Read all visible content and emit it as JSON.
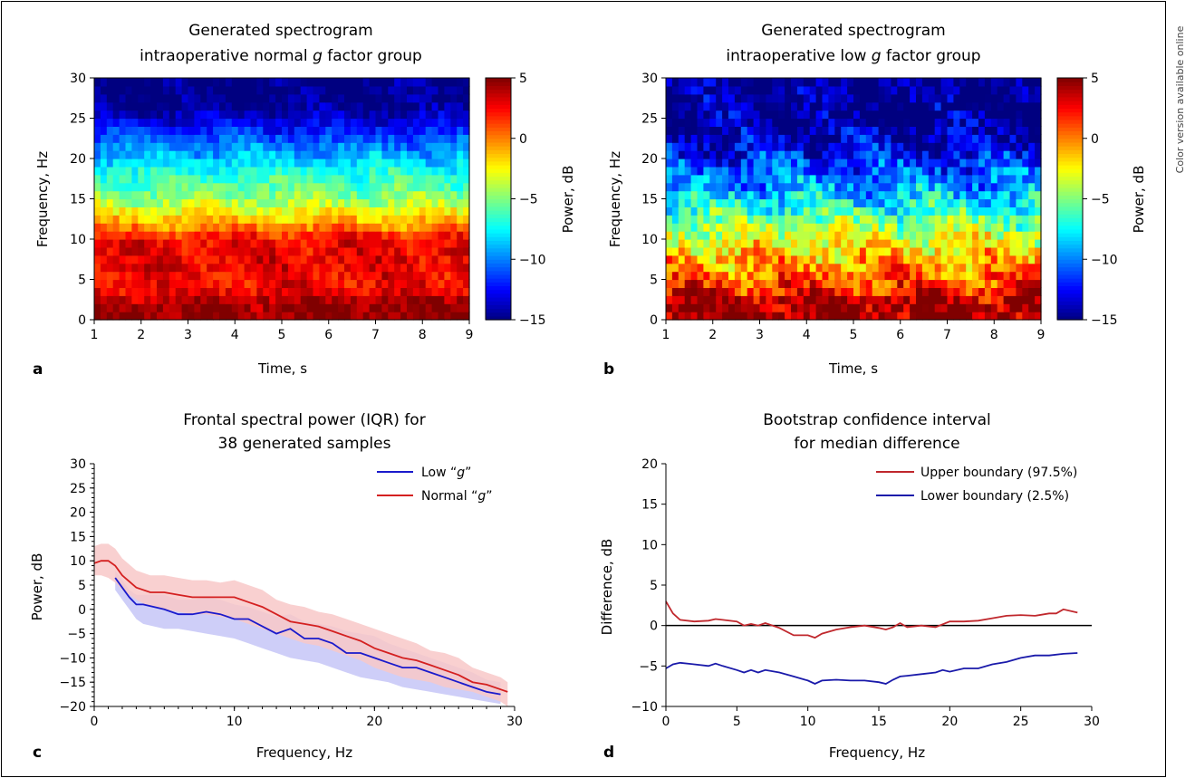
{
  "side_note": "Color version available online",
  "chart_data": [
    {
      "panel": "a",
      "type": "heatmap",
      "title_line1": "Generated spectrogram",
      "title_line2_pre": "intraoperative normal ",
      "title_italic": "g",
      "title_line2_post": " factor group",
      "xlabel": "Time, s",
      "ylabel": "Frequency, Hz",
      "colorbar_label": "Power, dB",
      "xlim": [
        1,
        9
      ],
      "ylim": [
        0,
        30
      ],
      "clim": [
        -15,
        5
      ],
      "colormap": "jet",
      "xticks": [
        1,
        2,
        3,
        4,
        5,
        6,
        7,
        8,
        9
      ],
      "yticks": [
        0,
        5,
        10,
        15,
        20,
        25,
        30
      ],
      "cticks": [
        -15,
        -10,
        -5,
        0,
        5
      ],
      "power_profile_dB": [
        {
          "freq": 0,
          "power": 5
        },
        {
          "freq": 2,
          "power": 4.5
        },
        {
          "freq": 4,
          "power": 2.5
        },
        {
          "freq": 6,
          "power": 2.8
        },
        {
          "freq": 8,
          "power": 3
        },
        {
          "freq": 10,
          "power": 2.5
        },
        {
          "freq": 11.5,
          "power": 0
        },
        {
          "freq": 13,
          "power": -2
        },
        {
          "freq": 15,
          "power": -4.5
        },
        {
          "freq": 17,
          "power": -6
        },
        {
          "freq": 19,
          "power": -7.5
        },
        {
          "freq": 21,
          "power": -9.5
        },
        {
          "freq": 23,
          "power": -11.5
        },
        {
          "freq": 25,
          "power": -13.5
        },
        {
          "freq": 27,
          "power": -15
        },
        {
          "freq": 30,
          "power": -15
        }
      ]
    },
    {
      "panel": "b",
      "type": "heatmap",
      "title_line1": "Generated spectrogram",
      "title_line2_pre": "intraoperative low ",
      "title_italic": "g",
      "title_line2_post": " factor group",
      "xlabel": "Time, s",
      "ylabel": "Frequency, Hz",
      "colorbar_label": "Power, dB",
      "xlim": [
        1,
        9
      ],
      "ylim": [
        0,
        30
      ],
      "clim": [
        -15,
        5
      ],
      "colormap": "jet",
      "xticks": [
        1,
        2,
        3,
        4,
        5,
        6,
        7,
        8,
        9
      ],
      "yticks": [
        0,
        5,
        10,
        15,
        20,
        25,
        30
      ],
      "cticks": [
        -15,
        -10,
        -5,
        0,
        5
      ],
      "power_profile_dB": [
        {
          "freq": 0,
          "power": 5
        },
        {
          "freq": 2,
          "power": 4.5
        },
        {
          "freq": 4,
          "power": 1.5
        },
        {
          "freq": 6,
          "power": 0
        },
        {
          "freq": 8,
          "power": -1
        },
        {
          "freq": 10,
          "power": -3
        },
        {
          "freq": 12,
          "power": -5
        },
        {
          "freq": 14,
          "power": -7
        },
        {
          "freq": 16,
          "power": -9
        },
        {
          "freq": 18,
          "power": -10.5
        },
        {
          "freq": 20,
          "power": -12
        },
        {
          "freq": 22,
          "power": -13.5
        },
        {
          "freq": 24,
          "power": -14.5
        },
        {
          "freq": 26,
          "power": -15
        },
        {
          "freq": 30,
          "power": -15
        }
      ]
    },
    {
      "panel": "c",
      "type": "line",
      "title_line1": "Frontal spectral power (IQR) for",
      "title_line2": "38 generated samples",
      "xlabel": "Frequency, Hz",
      "ylabel": "Power, dB",
      "xlim": [
        0,
        30
      ],
      "ylim": [
        -20,
        30
      ],
      "xticks": [
        0,
        10,
        20,
        30
      ],
      "yticks": [
        -20,
        -15,
        -10,
        -5,
        0,
        5,
        10,
        15,
        20,
        25,
        30
      ],
      "legend_position": "top-right",
      "series": [
        {
          "name_pre": "Low “",
          "name_italic": "g",
          "name_post": "”",
          "color": "#1a1acc",
          "band_color": "#c6c6f7",
          "x": [
            1.5,
            2,
            2.5,
            3,
            3.5,
            5,
            6,
            7,
            8,
            9,
            10,
            11,
            12,
            13,
            14,
            15,
            16,
            17,
            18,
            19,
            20,
            21,
            22,
            23,
            24,
            25,
            26,
            27,
            28,
            29
          ],
          "median": [
            6.5,
            4.5,
            2.5,
            1,
            1,
            0,
            -1,
            -1,
            -0.5,
            -1,
            -2,
            -2,
            -3.5,
            -5,
            -4,
            -6,
            -6,
            -7,
            -9,
            -9,
            -10,
            -11,
            -12,
            -12,
            -13,
            -14,
            -15,
            -16,
            -17,
            -17.5
          ],
          "q1": [
            4,
            2,
            0,
            -2,
            -3,
            -4,
            -4,
            -4.5,
            -5,
            -5.5,
            -6,
            -7,
            -8,
            -9,
            -10,
            -10.5,
            -11,
            -12,
            -13,
            -14,
            -14.5,
            -15,
            -16,
            -16.5,
            -17,
            -17.5,
            -18,
            -18.5,
            -19,
            -19.5
          ],
          "q3": [
            8,
            6,
            4,
            3,
            3,
            3,
            2,
            2,
            2.5,
            2,
            1,
            0.5,
            -0.5,
            -1.5,
            -1,
            -2.5,
            -3,
            -3.5,
            -4.5,
            -5,
            -5.5,
            -7,
            -8,
            -9,
            -10,
            -11,
            -12,
            -13,
            -14.5,
            -15
          ]
        },
        {
          "name_pre": "Normal “",
          "name_italic": "g",
          "name_post": "”",
          "color": "#d42020",
          "band_color": "#f8c8c8",
          "x": [
            0,
            0.5,
            1,
            1.5,
            2,
            3,
            4,
            5,
            6,
            7,
            8,
            9,
            10,
            11,
            12,
            13,
            14,
            15,
            16,
            17,
            18,
            19,
            20,
            21,
            22,
            23,
            24,
            25,
            26,
            27,
            28,
            29,
            29.5
          ],
          "median": [
            9.5,
            10,
            10,
            9,
            7,
            4.5,
            3.5,
            3.5,
            3,
            2.5,
            2.5,
            2.5,
            2.5,
            1.5,
            0.5,
            -1,
            -2.5,
            -3,
            -3.5,
            -4.5,
            -5.5,
            -6.5,
            -8,
            -9,
            -10,
            -10.5,
            -11.5,
            -12.5,
            -13.5,
            -15,
            -15.5,
            -16.5,
            -17
          ],
          "q1": [
            7,
            7,
            6.5,
            5.5,
            4,
            2,
            0.5,
            0,
            -0.5,
            -1,
            -1,
            -1.5,
            -2,
            -3,
            -4,
            -5,
            -6,
            -7,
            -7.5,
            -8.5,
            -9.5,
            -10.5,
            -12,
            -13,
            -14,
            -14.5,
            -15,
            -16,
            -16.5,
            -17,
            -18,
            -19,
            -20
          ],
          "q3": [
            13,
            13.5,
            13.5,
            12.5,
            10.5,
            8,
            7,
            7,
            6.5,
            6,
            6,
            5.5,
            6,
            5,
            4,
            2,
            1,
            0.5,
            -0.5,
            -1,
            -2,
            -3,
            -4,
            -5,
            -6,
            -7,
            -8.5,
            -9,
            -10,
            -12,
            -13,
            -14,
            -15
          ]
        }
      ]
    },
    {
      "panel": "d",
      "type": "line",
      "title_line1": "Bootstrap confidence interval",
      "title_line2": "for median difference",
      "xlabel": "Frequency, Hz",
      "ylabel": "Difference, dB",
      "xlim": [
        0,
        30
      ],
      "ylim": [
        -10,
        20
      ],
      "xticks": [
        0,
        5,
        10,
        15,
        20,
        25,
        30
      ],
      "yticks": [
        -10,
        -5,
        0,
        5,
        10,
        15,
        20
      ],
      "reference_line": 0,
      "legend_position": "top-right",
      "series": [
        {
          "name": "Upper boundary (97.5%)",
          "color": "#c0282d",
          "x": [
            0,
            0.5,
            1,
            2,
            3,
            3.5,
            4,
            5,
            5.5,
            6,
            6.5,
            7,
            8,
            9,
            10,
            10.5,
            11,
            12,
            13,
            14,
            15,
            15.5,
            16,
            16.5,
            17,
            18,
            19,
            20,
            21,
            22,
            23,
            24,
            25,
            26,
            27,
            27.5,
            28,
            29
          ],
          "values": [
            3,
            1.5,
            0.7,
            0.5,
            0.6,
            0.8,
            0.7,
            0.5,
            0,
            0.2,
            0,
            0.3,
            -0.3,
            -1.2,
            -1.2,
            -1.5,
            -1,
            -0.5,
            -0.2,
            0,
            -0.3,
            -0.5,
            -0.2,
            0.3,
            -0.2,
            0,
            -0.2,
            0.5,
            0.5,
            0.6,
            0.9,
            1.2,
            1.3,
            1.2,
            1.5,
            1.5,
            2,
            1.6
          ]
        },
        {
          "name": "Lower boundary (2.5%)",
          "color": "#1a1aaa",
          "x": [
            0,
            0.5,
            1,
            2,
            3,
            3.5,
            4,
            5,
            5.5,
            6,
            6.5,
            7,
            8,
            9,
            10,
            10.5,
            11,
            12,
            13,
            14,
            15,
            15.5,
            16,
            16.5,
            17,
            18,
            19,
            19.5,
            20,
            21,
            22,
            23,
            24,
            25,
            26,
            27,
            28,
            29
          ],
          "values": [
            -5.3,
            -4.8,
            -4.6,
            -4.8,
            -5,
            -4.7,
            -5,
            -5.5,
            -5.8,
            -5.5,
            -5.8,
            -5.5,
            -5.8,
            -6.3,
            -6.8,
            -7.2,
            -6.8,
            -6.7,
            -6.8,
            -6.8,
            -7,
            -7.2,
            -6.7,
            -6.3,
            -6.2,
            -6,
            -5.8,
            -5.5,
            -5.7,
            -5.3,
            -5.3,
            -4.8,
            -4.5,
            -4,
            -3.7,
            -3.7,
            -3.5,
            -3.4
          ]
        }
      ]
    }
  ]
}
